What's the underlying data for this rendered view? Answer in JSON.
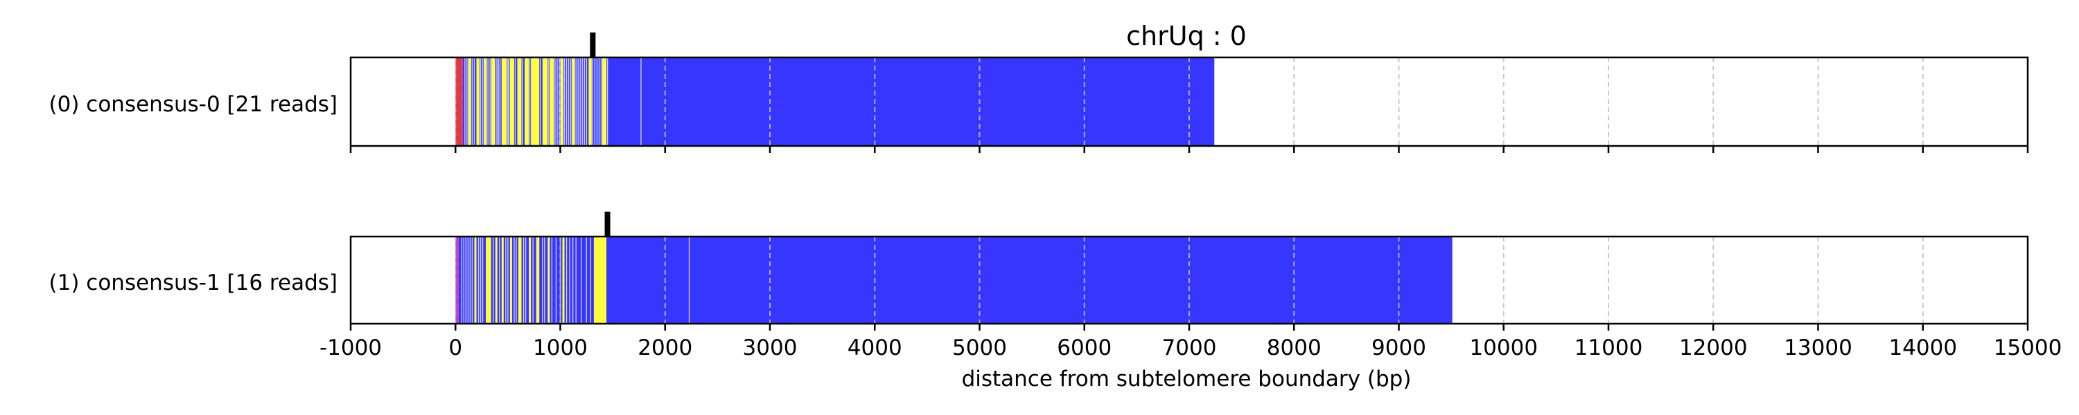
{
  "chart_data": {
    "type": "bar",
    "title": "chrUq : 0",
    "xlabel": "distance from subtelomere boundary (bp)",
    "ylabel": "",
    "xlim": [
      -1000,
      15000
    ],
    "xticks": [
      -1000,
      0,
      1000,
      2000,
      3000,
      4000,
      5000,
      6000,
      7000,
      8000,
      9000,
      10000,
      11000,
      12000,
      13000,
      14000,
      15000
    ],
    "xtick_labels": [
      "-1000",
      "0",
      "1000",
      "2000",
      "3000",
      "4000",
      "5000",
      "6000",
      "7000",
      "8000",
      "9000",
      "10000",
      "11000",
      "12000",
      "13000",
      "14000",
      "15000"
    ],
    "grid": "x-dashed",
    "colors": {
      "blue": "#3636ff",
      "yellow": "#ffff40",
      "red": "#e03a4a",
      "magenta": "#c040c0",
      "grid": "#c8c8c8",
      "divider": "#ffffff"
    },
    "series": [
      {
        "name": "(0) consensus-0 [21 reads]",
        "start": 0,
        "end": 7240,
        "marker_x": 1310,
        "segments": [
          {
            "start": 0,
            "end": 70,
            "color": "red"
          },
          {
            "start": 70,
            "end": 1460,
            "color": "blue"
          },
          {
            "start": 1460,
            "end": 7240,
            "color": "blue"
          }
        ],
        "yellow_bands": [
          [
            120,
            150
          ],
          [
            200,
            230
          ],
          [
            270,
            300
          ],
          [
            340,
            380
          ],
          [
            440,
            490
          ],
          [
            520,
            560
          ],
          [
            590,
            630
          ],
          [
            660,
            700
          ],
          [
            720,
            800
          ],
          [
            830,
            880
          ],
          [
            900,
            940
          ],
          [
            1000,
            1030
          ],
          [
            1110,
            1140
          ],
          [
            1270,
            1300
          ],
          [
            1400,
            1440
          ]
        ],
        "divider_lines": [
          90,
          110,
          160,
          180,
          240,
          260,
          310,
          330,
          395,
          410,
          425,
          500,
          510,
          570,
          640,
          710,
          810,
          890,
          950,
          970,
          990,
          1040,
          1060,
          1080,
          1100,
          1150,
          1170,
          1190,
          1210,
          1230,
          1250,
          1310,
          1330,
          1350,
          1370,
          1390,
          1450,
          1770
        ]
      },
      {
        "name": "(1) consensus-1 [16 reads]",
        "start": 0,
        "end": 9510,
        "marker_x": 1450,
        "segments": [
          {
            "start": 0,
            "end": 30,
            "color": "magenta"
          },
          {
            "start": 30,
            "end": 9510,
            "color": "blue"
          }
        ],
        "yellow_bands": [
          [
            180,
            200
          ],
          [
            290,
            340
          ],
          [
            380,
            400
          ],
          [
            440,
            460
          ],
          [
            520,
            540
          ],
          [
            600,
            630
          ],
          [
            700,
            720
          ],
          [
            770,
            800
          ],
          [
            880,
            900
          ],
          [
            1020,
            1040
          ],
          [
            1320,
            1440
          ]
        ],
        "divider_lines": [
          60,
          80,
          100,
          120,
          140,
          160,
          220,
          240,
          260,
          360,
          420,
          480,
          500,
          560,
          580,
          650,
          670,
          740,
          830,
          850,
          920,
          960,
          1000,
          1060,
          1090,
          1120,
          1150,
          1200,
          1250,
          1290,
          2230
        ]
      }
    ]
  }
}
